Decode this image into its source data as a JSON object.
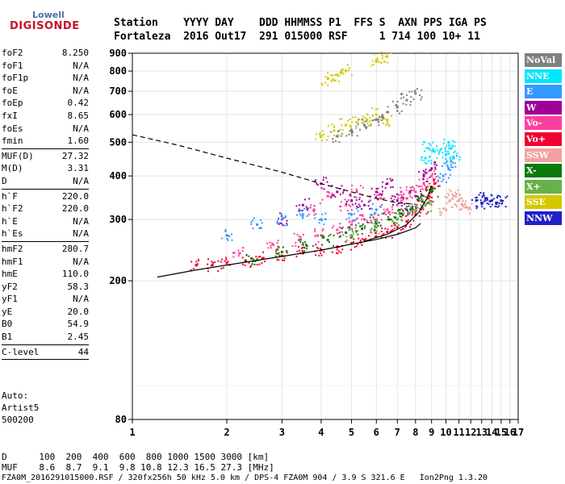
{
  "logo": {
    "top": "Lowell",
    "main": "DIGISONDE"
  },
  "header": {
    "line1": "Station    YYYY DAY    DDD HHMMSS P1  FFS S  AXN PPS IGA PS",
    "line2": "Fortaleza  2016 Out17  291 015000 RSF     1 714 100 10+ 11"
  },
  "params": {
    "group1": [
      {
        "name": "foF2",
        "value": "8.250"
      },
      {
        "name": "foF1",
        "value": "N/A"
      },
      {
        "name": "foF1p",
        "value": "N/A"
      },
      {
        "name": "foE",
        "value": "N/A"
      },
      {
        "name": "foEp",
        "value": "0.42"
      },
      {
        "name": "fxI",
        "value": "8.65"
      },
      {
        "name": "foEs",
        "value": "N/A"
      },
      {
        "name": "fmin",
        "value": "1.60"
      }
    ],
    "group2": [
      {
        "name": "MUF(D)",
        "value": "27.32"
      },
      {
        "name": "M(D)",
        "value": "3.31"
      },
      {
        "name": "D",
        "value": "N/A"
      }
    ],
    "group3": [
      {
        "name": "h`F",
        "value": "220.0"
      },
      {
        "name": "h`F2",
        "value": "220.0"
      },
      {
        "name": "h`E",
        "value": "N/A"
      },
      {
        "name": "h`Es",
        "value": "N/A"
      }
    ],
    "group4": [
      {
        "name": "hmF2",
        "value": "280.7"
      },
      {
        "name": "hmF1",
        "value": "N/A"
      },
      {
        "name": "hmE",
        "value": "110.0"
      },
      {
        "name": "yF2",
        "value": "58.3"
      },
      {
        "name": "yF1",
        "value": "N/A"
      },
      {
        "name": "yE",
        "value": "20.0"
      },
      {
        "name": "B0",
        "value": "54.9"
      },
      {
        "name": "B1",
        "value": "2.45"
      }
    ],
    "group5": [
      {
        "name": "C-level",
        "value": "44"
      }
    ]
  },
  "auto": {
    "line1": "Auto:",
    "line2": "Artist5",
    "line3": "500200"
  },
  "legend": [
    {
      "label": "NoVal",
      "bg": "#808080",
      "fg": "#ffffff"
    },
    {
      "label": "NNE",
      "bg": "#00e5ff",
      "fg": "#ffffff"
    },
    {
      "label": "E",
      "bg": "#3399ff",
      "fg": "#ffffff"
    },
    {
      "label": "W",
      "bg": "#a0009a",
      "fg": "#ffffff"
    },
    {
      "label": "Vo-",
      "bg": "#ff3fa0",
      "fg": "#ffffff"
    },
    {
      "label": "Vo+",
      "bg": "#ee0030",
      "fg": "#ffffff"
    },
    {
      "label": "SSW",
      "bg": "#f5a0a0",
      "fg": "#ffffff"
    },
    {
      "label": "X-",
      "bg": "#0a7a0a",
      "fg": "#ffffff"
    },
    {
      "label": "X+",
      "bg": "#66b24a",
      "fg": "#ffffff"
    },
    {
      "label": "SSE",
      "bg": "#d4c800",
      "fg": "#ffffff"
    },
    {
      "label": "NNW",
      "bg": "#2020c8",
      "fg": "#ffffff"
    }
  ],
  "footer": {
    "line1": "D      100  200  400  600  800 1000 1500 3000 [km]",
    "line2": "MUF    8.6  8.7  9.1  9.8 10.8 12.3 16.5 27.3 [MHz]",
    "line3": "FZA0M_2016291015000.RSF / 320fx256h 50 kHz 5.0 km / DPS-4 FZA0M 904 / 3.9 S 321.6 E   Ion2Png 1.3.20"
  },
  "chart_data": {
    "type": "scatter",
    "title": "",
    "xlabel": "",
    "ylabel": "",
    "x_scale": "log",
    "y_scale": "log",
    "xlim": [
      1,
      17
    ],
    "ylim": [
      80,
      900
    ],
    "x_ticks": [
      1,
      2,
      3,
      4,
      5,
      6,
      7,
      8,
      9,
      10,
      11,
      12,
      13,
      14,
      15,
      16,
      17
    ],
    "y_ticks": [
      80,
      200,
      300,
      400,
      500,
      600,
      700,
      800,
      900
    ],
    "grid": true,
    "legend_position": "right",
    "series": [
      {
        "name": "Vo+",
        "color": "#ee0030",
        "points": [
          [
            1.6,
            222
          ],
          [
            1.8,
            222
          ],
          [
            2.0,
            225
          ],
          [
            2.3,
            228
          ],
          [
            2.6,
            232
          ],
          [
            3.0,
            236
          ],
          [
            3.5,
            240
          ],
          [
            4.0,
            245
          ],
          [
            4.5,
            250
          ],
          [
            5.0,
            256
          ],
          [
            5.5,
            262
          ],
          [
            6.0,
            268
          ],
          [
            6.5,
            276
          ],
          [
            7.0,
            285
          ],
          [
            7.5,
            296
          ],
          [
            8.0,
            310
          ],
          [
            8.4,
            325
          ],
          [
            8.8,
            345
          ],
          [
            9.0,
            360
          ],
          [
            9.2,
            380
          ]
        ]
      },
      {
        "name": "Vo-",
        "color": "#ff3fa0",
        "points": [
          [
            2.2,
            240
          ],
          [
            2.8,
            255
          ],
          [
            3.4,
            262
          ],
          [
            4.0,
            270
          ],
          [
            4.5,
            280
          ],
          [
            5.0,
            290
          ],
          [
            5.5,
            300
          ],
          [
            6.0,
            300
          ],
          [
            6.5,
            320
          ],
          [
            7.0,
            330
          ],
          [
            7.5,
            345
          ],
          [
            8.0,
            360
          ],
          [
            8.5,
            380
          ],
          [
            9.0,
            400
          ],
          [
            4.2,
            350
          ],
          [
            5.2,
            360
          ],
          [
            6.2,
            345
          ],
          [
            7.2,
            360
          ],
          [
            3.8,
            320
          ],
          [
            4.8,
            330
          ]
        ]
      },
      {
        "name": "W",
        "color": "#a0009a",
        "points": [
          [
            3.0,
            300
          ],
          [
            3.5,
            330
          ],
          [
            4.0,
            380
          ],
          [
            4.5,
            360
          ],
          [
            5.0,
            340
          ],
          [
            5.5,
            330
          ],
          [
            6.0,
            360
          ],
          [
            6.5,
            380
          ],
          [
            7.0,
            340
          ],
          [
            7.5,
            320
          ],
          [
            8.0,
            350
          ],
          [
            8.5,
            400
          ],
          [
            9.0,
            420
          ]
        ]
      },
      {
        "name": "X-",
        "color": "#0a7a0a",
        "points": [
          [
            2.4,
            232
          ],
          [
            3.0,
            242
          ],
          [
            3.6,
            252
          ],
          [
            4.2,
            262
          ],
          [
            4.8,
            275
          ],
          [
            5.4,
            282
          ],
          [
            6.0,
            292
          ],
          [
            6.6,
            300
          ],
          [
            7.2,
            312
          ],
          [
            7.8,
            322
          ],
          [
            8.4,
            340
          ],
          [
            9.0,
            362
          ]
        ]
      },
      {
        "name": "X+",
        "color": "#66b24a",
        "points": [
          [
            5.0,
            270
          ],
          [
            6.0,
            285
          ],
          [
            7.0,
            300
          ],
          [
            8.0,
            318
          ],
          [
            8.6,
            330
          ]
        ]
      },
      {
        "name": "E",
        "color": "#3399ff",
        "points": [
          [
            2.0,
            270
          ],
          [
            2.5,
            290
          ],
          [
            3.0,
            300
          ],
          [
            3.5,
            310
          ],
          [
            4.0,
            300
          ],
          [
            5.0,
            310
          ],
          [
            6.0,
            320
          ],
          [
            9.8,
            400
          ],
          [
            10.2,
            420
          ],
          [
            10.4,
            440
          ]
        ]
      },
      {
        "name": "NNE",
        "color": "#00e5ff",
        "points": [
          [
            8.6,
            450
          ],
          [
            8.8,
            480
          ],
          [
            9.2,
            470
          ],
          [
            10.0,
            460
          ],
          [
            10.2,
            500
          ],
          [
            10.4,
            480
          ],
          [
            10.6,
            450
          ]
        ]
      },
      {
        "name": "SSW",
        "color": "#f5a0a0",
        "points": [
          [
            10.0,
            320
          ],
          [
            10.3,
            340
          ],
          [
            10.6,
            350
          ],
          [
            11.0,
            340
          ],
          [
            11.3,
            330
          ],
          [
            11.6,
            325
          ]
        ]
      },
      {
        "name": "SSE",
        "color": "#d4c800",
        "points": [
          [
            4.0,
            520
          ],
          [
            4.4,
            540
          ],
          [
            4.8,
            560
          ],
          [
            5.2,
            570
          ],
          [
            5.6,
            580
          ],
          [
            6.0,
            600
          ],
          [
            6.5,
            580
          ],
          [
            4.2,
            760
          ],
          [
            4.5,
            780
          ],
          [
            4.8,
            800
          ],
          [
            6.0,
            860
          ],
          [
            6.5,
            880
          ]
        ]
      },
      {
        "name": "NNW",
        "color": "#2020c8",
        "points": [
          [
            12.5,
            340
          ],
          [
            13.0,
            335
          ],
          [
            13.5,
            345
          ],
          [
            14.0,
            340
          ],
          [
            14.5,
            335
          ],
          [
            15.0,
            340
          ]
        ]
      },
      {
        "name": "NoVal",
        "color": "#808080",
        "points": [
          [
            4.5,
            520
          ],
          [
            5.0,
            540
          ],
          [
            5.5,
            560
          ],
          [
            6.0,
            580
          ],
          [
            6.5,
            610
          ],
          [
            7.0,
            630
          ],
          [
            7.5,
            660
          ],
          [
            8.0,
            690
          ]
        ]
      }
    ],
    "curves": [
      {
        "style": "solid",
        "points": [
          [
            1.2,
            205
          ],
          [
            1.6,
            215
          ],
          [
            2.0,
            222
          ],
          [
            3.0,
            235
          ],
          [
            4.0,
            245
          ],
          [
            5.0,
            255
          ],
          [
            6.0,
            263
          ],
          [
            7.0,
            272
          ],
          [
            7.5,
            278
          ],
          [
            8.0,
            284
          ],
          [
            8.3,
            292
          ]
        ]
      },
      {
        "style": "solid",
        "points": [
          [
            5.5,
            260
          ],
          [
            6.5,
            272
          ],
          [
            7.5,
            290
          ],
          [
            8.2,
            315
          ],
          [
            8.7,
            345
          ],
          [
            9.0,
            375
          ]
        ]
      },
      {
        "style": "dashed",
        "points": [
          [
            1.0,
            525
          ],
          [
            1.4,
            490
          ],
          [
            2.0,
            450
          ],
          [
            3.0,
            410
          ],
          [
            4.0,
            380
          ],
          [
            5.0,
            360
          ],
          [
            6.0,
            345
          ],
          [
            7.0,
            335
          ],
          [
            8.0,
            332
          ]
        ]
      }
    ]
  }
}
